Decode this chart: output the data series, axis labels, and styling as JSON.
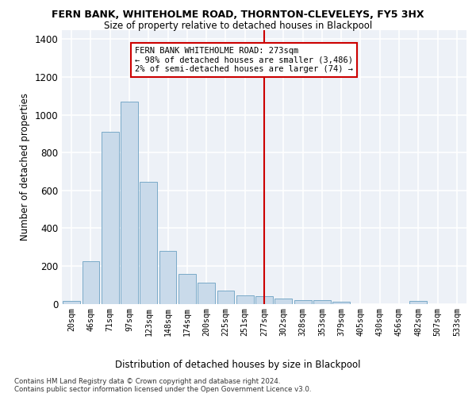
{
  "title1": "FERN BANK, WHITEHOLME ROAD, THORNTON-CLEVELEYS, FY5 3HX",
  "title2": "Size of property relative to detached houses in Blackpool",
  "xlabel": "Distribution of detached houses by size in Blackpool",
  "ylabel": "Number of detached properties",
  "bar_color": "#c9daea",
  "bar_edge_color": "#7aaac8",
  "vline_color": "#cc0000",
  "annotation_text": "FERN BANK WHITEHOLME ROAD: 273sqm\n← 98% of detached houses are smaller (3,486)\n2% of semi-detached houses are larger (74) →",
  "categories": [
    "20sqm",
    "46sqm",
    "71sqm",
    "97sqm",
    "123sqm",
    "148sqm",
    "174sqm",
    "200sqm",
    "225sqm",
    "251sqm",
    "277sqm",
    "302sqm",
    "328sqm",
    "353sqm",
    "379sqm",
    "405sqm",
    "430sqm",
    "456sqm",
    "482sqm",
    "507sqm",
    "533sqm"
  ],
  "values": [
    15,
    225,
    910,
    1070,
    645,
    278,
    158,
    110,
    70,
    45,
    40,
    28,
    20,
    20,
    12,
    0,
    0,
    0,
    15,
    0,
    0
  ],
  "vline_idx": 10,
  "ylim": [
    0,
    1450
  ],
  "yticks": [
    0,
    200,
    400,
    600,
    800,
    1000,
    1200,
    1400
  ],
  "footer": "Contains HM Land Registry data © Crown copyright and database right 2024.\nContains public sector information licensed under the Open Government Licence v3.0.",
  "bg_color": "#edf1f7"
}
